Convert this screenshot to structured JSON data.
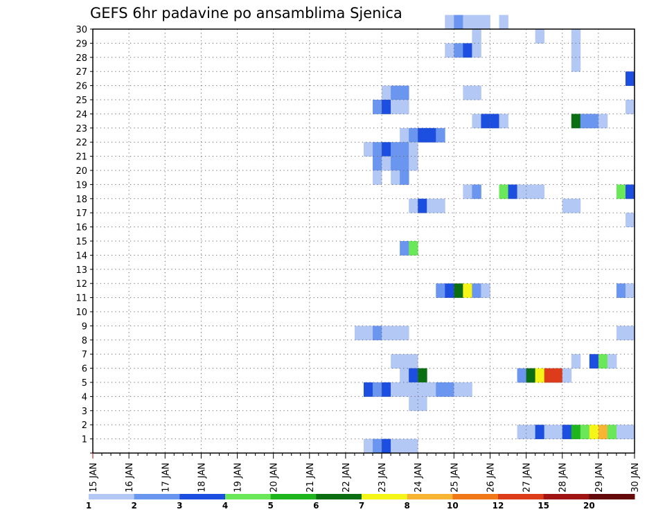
{
  "chart_data": {
    "type": "heatmap",
    "title": "GEFS 6hr padavine po ansamblima Sjenica",
    "xlabel": "",
    "ylabel": "",
    "x_ticks": [
      "15 JAN",
      "16 JAN",
      "17 JAN",
      "18 JAN",
      "19 JAN",
      "20 JAN",
      "21 JAN",
      "22 JAN",
      "23 JAN",
      "24 JAN",
      "25 JAN",
      "26 JAN",
      "27 JAN",
      "28 JAN",
      "29 JAN",
      "30 JAN"
    ],
    "y_ticks": [
      "1",
      "2",
      "3",
      "4",
      "5",
      "6",
      "7",
      "8",
      "9",
      "10",
      "11",
      "12",
      "13",
      "14",
      "15",
      "16",
      "17",
      "18",
      "19",
      "20",
      "21",
      "22",
      "23",
      "24",
      "25",
      "26",
      "27",
      "28",
      "29",
      "30"
    ],
    "xlim": [
      0,
      60
    ],
    "ylim": [
      0,
      30
    ],
    "grid": true,
    "time_step_hours": 6,
    "colorbar": {
      "placement": "bottom",
      "labels": [
        "1",
        "2",
        "3",
        "4",
        "5",
        "6",
        "7",
        "8",
        "10",
        "12",
        "15",
        "20"
      ],
      "colors": [
        "#b4c8f5",
        "#6b96ef",
        "#1c4ee0",
        "#6ae85a",
        "#1fb51f",
        "#0b6e12",
        "#f5f518",
        "#f7b533",
        "#f07818",
        "#dc3c1a",
        "#a01414",
        "#640a0a"
      ]
    },
    "cells": [
      [
        30,
        39,
        1
      ],
      [
        30,
        40,
        2
      ],
      [
        30,
        41,
        1
      ],
      [
        30,
        42,
        1
      ],
      [
        30,
        43,
        1
      ],
      [
        30,
        45,
        1
      ],
      [
        29,
        42,
        1
      ],
      [
        29,
        49,
        1
      ],
      [
        29,
        53,
        1
      ],
      [
        28,
        39,
        1
      ],
      [
        28,
        40,
        2
      ],
      [
        28,
        41,
        3
      ],
      [
        28,
        42,
        1
      ],
      [
        28,
        53,
        1
      ],
      [
        27,
        53,
        1
      ],
      [
        26,
        59,
        3
      ],
      [
        25,
        32,
        1
      ],
      [
        25,
        33,
        2
      ],
      [
        25,
        34,
        2
      ],
      [
        25,
        41,
        1
      ],
      [
        25,
        42,
        1
      ],
      [
        24,
        31,
        2
      ],
      [
        24,
        32,
        3
      ],
      [
        24,
        33,
        1
      ],
      [
        24,
        34,
        1
      ],
      [
        24,
        59,
        1
      ],
      [
        23,
        42,
        1
      ],
      [
        23,
        43,
        3
      ],
      [
        23,
        44,
        3
      ],
      [
        23,
        45,
        1
      ],
      [
        23,
        53,
        6
      ],
      [
        23,
        54,
        2
      ],
      [
        23,
        55,
        2
      ],
      [
        23,
        56,
        1
      ],
      [
        22,
        34,
        1
      ],
      [
        22,
        35,
        2
      ],
      [
        22,
        36,
        3
      ],
      [
        22,
        37,
        3
      ],
      [
        22,
        38,
        2
      ],
      [
        21,
        30,
        1
      ],
      [
        21,
        31,
        2
      ],
      [
        21,
        32,
        3
      ],
      [
        21,
        33,
        2
      ],
      [
        21,
        34,
        2
      ],
      [
        21,
        35,
        1
      ],
      [
        20,
        31,
        2
      ],
      [
        20,
        32,
        1
      ],
      [
        20,
        33,
        2
      ],
      [
        20,
        34,
        2
      ],
      [
        20,
        35,
        1
      ],
      [
        19,
        31,
        1
      ],
      [
        19,
        33,
        1
      ],
      [
        19,
        34,
        2
      ],
      [
        18,
        41,
        1
      ],
      [
        18,
        42,
        2
      ],
      [
        18,
        45,
        4
      ],
      [
        18,
        46,
        3
      ],
      [
        18,
        47,
        1
      ],
      [
        18,
        48,
        1
      ],
      [
        18,
        49,
        1
      ],
      [
        18,
        58,
        4
      ],
      [
        18,
        59,
        3
      ],
      [
        17,
        35,
        1
      ],
      [
        17,
        36,
        3
      ],
      [
        17,
        37,
        1
      ],
      [
        17,
        38,
        1
      ],
      [
        17,
        52,
        1
      ],
      [
        17,
        53,
        1
      ],
      [
        16,
        59,
        1
      ],
      [
        14,
        34,
        2
      ],
      [
        14,
        35,
        4
      ],
      [
        11,
        38,
        2
      ],
      [
        11,
        39,
        3
      ],
      [
        11,
        40,
        6
      ],
      [
        11,
        41,
        7
      ],
      [
        11,
        42,
        2
      ],
      [
        11,
        43,
        1
      ],
      [
        11,
        58,
        2
      ],
      [
        11,
        59,
        1
      ],
      [
        8,
        29,
        1
      ],
      [
        8,
        30,
        1
      ],
      [
        8,
        31,
        2
      ],
      [
        8,
        32,
        1
      ],
      [
        8,
        33,
        1
      ],
      [
        8,
        34,
        1
      ],
      [
        8,
        58,
        1
      ],
      [
        8,
        59,
        1
      ],
      [
        6,
        33,
        1
      ],
      [
        6,
        34,
        1
      ],
      [
        6,
        35,
        1
      ],
      [
        6,
        53,
        1
      ],
      [
        6,
        55,
        3
      ],
      [
        6,
        56,
        4
      ],
      [
        6,
        57,
        1
      ],
      [
        5,
        34,
        1
      ],
      [
        5,
        35,
        3
      ],
      [
        5,
        36,
        6
      ],
      [
        5,
        47,
        2
      ],
      [
        5,
        48,
        6
      ],
      [
        5,
        49,
        7
      ],
      [
        5,
        50,
        10
      ],
      [
        5,
        51,
        10
      ],
      [
        5,
        52,
        1
      ],
      [
        4,
        30,
        3
      ],
      [
        4,
        31,
        2
      ],
      [
        4,
        32,
        3
      ],
      [
        4,
        33,
        1
      ],
      [
        4,
        34,
        1
      ],
      [
        4,
        35,
        1
      ],
      [
        4,
        36,
        1
      ],
      [
        4,
        37,
        1
      ],
      [
        4,
        38,
        2
      ],
      [
        4,
        39,
        2
      ],
      [
        4,
        40,
        1
      ],
      [
        4,
        41,
        1
      ],
      [
        3,
        35,
        1
      ],
      [
        3,
        36,
        1
      ],
      [
        1,
        47,
        1
      ],
      [
        1,
        48,
        1
      ],
      [
        1,
        49,
        3
      ],
      [
        1,
        50,
        1
      ],
      [
        1,
        51,
        1
      ],
      [
        1,
        52,
        3
      ],
      [
        1,
        53,
        5
      ],
      [
        1,
        54,
        4
      ],
      [
        1,
        55,
        7
      ],
      [
        1,
        56,
        8
      ],
      [
        1,
        57,
        4
      ],
      [
        1,
        58,
        1
      ],
      [
        1,
        59,
        1
      ],
      [
        0,
        30,
        1
      ],
      [
        0,
        31,
        2
      ],
      [
        0,
        32,
        3
      ],
      [
        0,
        33,
        1
      ],
      [
        0,
        34,
        1
      ],
      [
        0,
        35,
        1
      ]
    ]
  }
}
